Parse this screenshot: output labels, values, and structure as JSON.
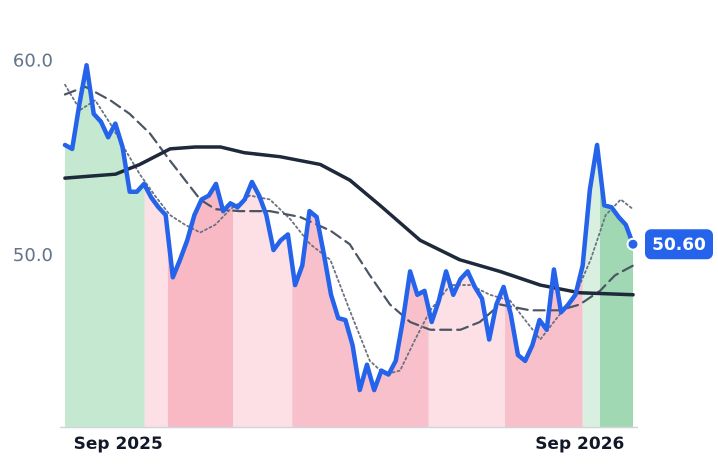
{
  "chart_data": {
    "type": "line",
    "xlim": [
      0,
      79
    ],
    "ylim": [
      41.2,
      61.1
    ],
    "yticks": [
      {
        "value": 50,
        "label": "50.0"
      },
      {
        "value": 60,
        "label": "60.0"
      }
    ],
    "xticks": [
      {
        "value": 7.4,
        "label": "Sep 2025"
      },
      {
        "value": 71.6,
        "label": "Sep 2026"
      }
    ],
    "bands": [
      {
        "start": 0,
        "end": 11.1,
        "color": "#c4e8d0"
      },
      {
        "start": 11.1,
        "end": 14.3,
        "color": "#fde0e5"
      },
      {
        "start": 14.3,
        "end": 23.4,
        "color": "#f8b8c4"
      },
      {
        "start": 23.4,
        "end": 31.6,
        "color": "#fde0e5"
      },
      {
        "start": 31.6,
        "end": 50.6,
        "color": "#f8c0cb"
      },
      {
        "start": 50.6,
        "end": 61.2,
        "color": "#fde0e5"
      },
      {
        "start": 61.2,
        "end": 72.0,
        "color": "#f8c0cb"
      },
      {
        "start": 72.0,
        "end": 74.4,
        "color": "#d9f0e0"
      },
      {
        "start": 74.4,
        "end": 79,
        "color": "#9fd8b2"
      }
    ],
    "series": [
      {
        "color": "#2563eb",
        "line_style": "solid",
        "x": [
          0,
          1,
          2,
          3,
          4,
          5,
          6,
          7,
          8,
          9,
          10,
          11,
          12,
          13,
          14,
          15,
          16,
          17,
          18,
          19,
          20,
          21,
          22,
          23,
          24,
          25,
          26,
          27,
          28,
          29,
          30,
          31,
          32,
          33,
          34,
          35,
          36,
          37,
          38,
          39,
          40,
          41,
          42,
          43,
          44,
          45,
          46,
          47,
          48,
          49,
          50,
          51,
          52,
          53,
          54,
          55,
          56,
          57,
          58,
          59,
          60,
          61,
          62,
          63,
          64,
          65,
          66,
          67,
          68,
          69,
          70,
          71,
          72,
          73,
          74,
          75,
          76,
          77,
          78,
          79
        ],
        "values": [
          55.7,
          55.5,
          57.8,
          59.8,
          57.3,
          56.9,
          56.1,
          56.8,
          55.6,
          53.3,
          53.3,
          53.7,
          53.0,
          52.5,
          52.1,
          48.9,
          49.8,
          50.8,
          52.1,
          52.9,
          53.1,
          53.7,
          52.3,
          52.7,
          52.5,
          52.9,
          53.8,
          53.1,
          52.1,
          50.3,
          50.8,
          51.1,
          48.5,
          49.5,
          52.3,
          52.0,
          50.1,
          48.0,
          46.8,
          46.7,
          45.4,
          43.1,
          44.4,
          43.1,
          44.1,
          43.9,
          44.6,
          46.7,
          49.2,
          48.0,
          48.2,
          46.6,
          47.7,
          49.2,
          48.0,
          48.8,
          49.2,
          48.4,
          47.8,
          45.7,
          47.5,
          48.4,
          47.0,
          44.9,
          44.6,
          45.4,
          46.7,
          46.2,
          49.3,
          47.1,
          47.5,
          48.0,
          49.5,
          53.4,
          55.7,
          52.6,
          52.5,
          52.0,
          51.6,
          50.6
        ]
      },
      {
        "color": "#1e293b",
        "line_style": "solid",
        "x": [
          0,
          3.5,
          7,
          10.4,
          14.6,
          18.1,
          21.6,
          25,
          29.9,
          35.5,
          39.6,
          43.8,
          49.4,
          54.9,
          60.5,
          66.1,
          71.6,
          79
        ],
        "values": [
          54.0,
          54.1,
          54.2,
          54.7,
          55.5,
          55.6,
          55.6,
          55.3,
          55.1,
          54.7,
          53.9,
          52.6,
          50.8,
          49.8,
          49.2,
          48.5,
          48.1,
          48.0
        ]
      },
      {
        "color": "#4b5563",
        "line_style": "dashed",
        "x": [
          0,
          2.8,
          6.3,
          9.0,
          11.8,
          14.6,
          16.7,
          18.8,
          20.9,
          24.3,
          28.5,
          32.7,
          36.9,
          39.6,
          42.4,
          45.2,
          48.0,
          50.8,
          55.0,
          57.7,
          60.5,
          64.7,
          68.8,
          71.6,
          74.4,
          76.5,
          79
        ],
        "values": [
          58.3,
          58.7,
          58.0,
          57.3,
          56.3,
          54.9,
          53.9,
          52.9,
          52.4,
          52.3,
          52.3,
          52.0,
          51.3,
          50.6,
          49.0,
          47.5,
          46.6,
          46.2,
          46.2,
          46.6,
          47.5,
          47.2,
          47.2,
          47.5,
          48.2,
          49.0,
          49.5
        ]
      },
      {
        "color": "#6b7280",
        "line_style": "dotted",
        "x": [
          0,
          2.1,
          4.2,
          6.3,
          8.3,
          10.4,
          12.5,
          14.6,
          16.7,
          18.8,
          20.9,
          23.0,
          25.7,
          28.5,
          31.3,
          34.1,
          36.9,
          39.6,
          42.4,
          44.5,
          46.6,
          48.7,
          50.8,
          53.6,
          56.4,
          59.1,
          61.9,
          64.0,
          66.1,
          68.2,
          71.0,
          73.1,
          75.2,
          77.3,
          79
        ],
        "values": [
          58.8,
          57.5,
          58.0,
          56.8,
          55.5,
          54.2,
          53.1,
          52.1,
          51.6,
          51.2,
          51.6,
          52.4,
          53.1,
          52.9,
          51.9,
          50.6,
          49.8,
          47.2,
          44.6,
          43.9,
          44.1,
          45.7,
          47.2,
          48.5,
          48.5,
          48.0,
          47.7,
          46.7,
          45.7,
          46.7,
          48.0,
          49.8,
          52.1,
          52.9,
          52.4
        ]
      }
    ],
    "last_price": {
      "value": 50.6,
      "label": "50.60"
    }
  }
}
